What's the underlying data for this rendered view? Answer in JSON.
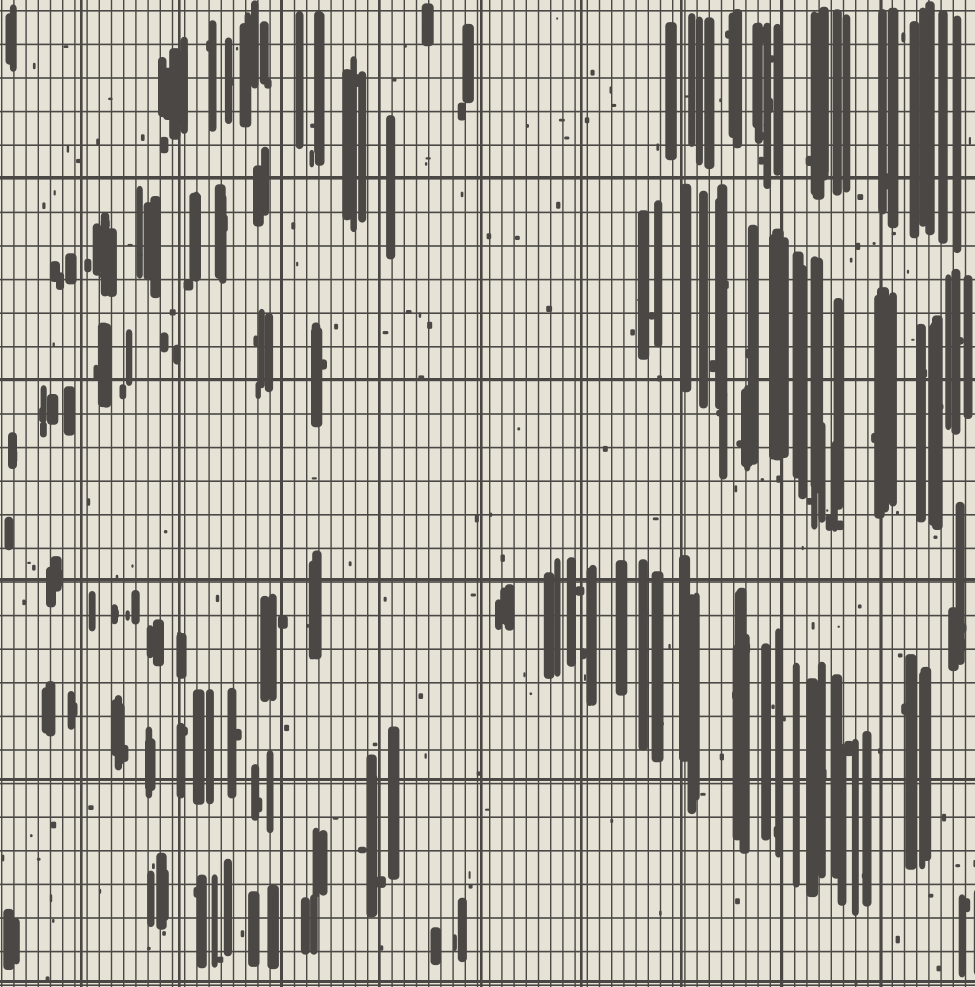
{
  "pattern": {
    "name": "grunge-grid-stripes",
    "colors": {
      "background": "#e6e2d6",
      "ink": "#4a4744"
    }
  }
}
